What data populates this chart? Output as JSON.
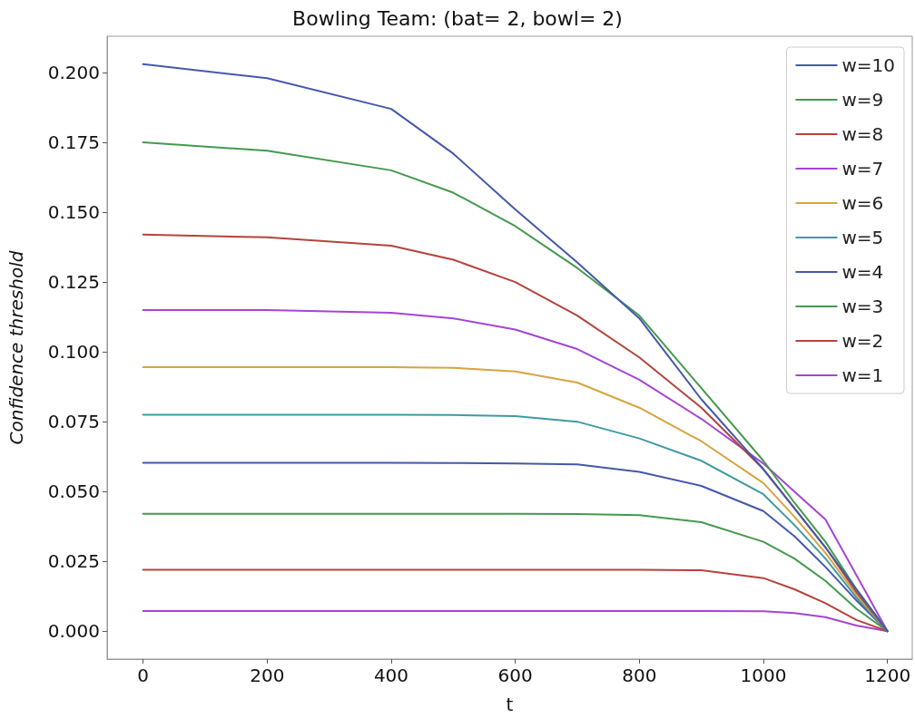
{
  "chart_data": {
    "type": "line",
    "title": "Bowling Team: (bat= 2, bowl= 2)",
    "xlabel": "t",
    "ylabel": "Confidence threshold",
    "x": [
      0,
      200,
      400,
      500,
      600,
      700,
      800,
      900,
      1000,
      1050,
      1100,
      1150,
      1200
    ],
    "series": [
      {
        "name": "w=10",
        "color": "#4459a8",
        "values": [
          0.203,
          0.198,
          0.187,
          0.171,
          0.151,
          0.132,
          0.112,
          0.083,
          0.058,
          0.044,
          0.03,
          0.015,
          0
        ]
      },
      {
        "name": "w=9",
        "color": "#45994f",
        "values": [
          0.175,
          0.172,
          0.165,
          0.157,
          0.145,
          0.13,
          0.113,
          0.087,
          0.061,
          0.046,
          0.032,
          0.015,
          0
        ]
      },
      {
        "name": "w=8",
        "color": "#b3443d",
        "values": [
          0.142,
          0.141,
          0.138,
          0.133,
          0.125,
          0.113,
          0.098,
          0.08,
          0.058,
          0.044,
          0.03,
          0.014,
          0
        ]
      },
      {
        "name": "w=7",
        "color": "#a545d0",
        "values": [
          0.115,
          0.115,
          0.114,
          0.112,
          0.108,
          0.101,
          0.09,
          0.076,
          0.06,
          0.05,
          0.04,
          0.02,
          0
        ]
      },
      {
        "name": "w=6",
        "color": "#d6a440",
        "values": [
          0.0945,
          0.0945,
          0.0945,
          0.0943,
          0.093,
          0.089,
          0.08,
          0.068,
          0.053,
          0.041,
          0.028,
          0.013,
          0
        ]
      },
      {
        "name": "w=5",
        "color": "#3f9aa3",
        "values": [
          0.0775,
          0.0775,
          0.0775,
          0.0774,
          0.077,
          0.075,
          0.069,
          0.061,
          0.049,
          0.038,
          0.026,
          0.012,
          0
        ]
      },
      {
        "name": "w=4",
        "color": "#4459a8",
        "values": [
          0.0603,
          0.0603,
          0.0603,
          0.0602,
          0.06,
          0.0597,
          0.057,
          0.052,
          0.043,
          0.034,
          0.023,
          0.011,
          0
        ]
      },
      {
        "name": "w=3",
        "color": "#45994f",
        "values": [
          0.042,
          0.042,
          0.042,
          0.042,
          0.042,
          0.0419,
          0.0415,
          0.039,
          0.032,
          0.026,
          0.018,
          0.008,
          0
        ]
      },
      {
        "name": "w=2",
        "color": "#b3443d",
        "values": [
          0.022,
          0.022,
          0.022,
          0.022,
          0.022,
          0.022,
          0.022,
          0.0218,
          0.019,
          0.015,
          0.01,
          0.004,
          0
        ]
      },
      {
        "name": "w=1",
        "color": "#a545d0",
        "values": [
          0.0072,
          0.0072,
          0.0072,
          0.0072,
          0.0072,
          0.0072,
          0.0072,
          0.0072,
          0.0071,
          0.0065,
          0.005,
          0.002,
          0
        ]
      }
    ],
    "xlim": [
      -58,
      1240
    ],
    "xticks": [
      0,
      200,
      400,
      600,
      800,
      1000,
      1200
    ],
    "ylim": [
      -0.01,
      0.213
    ],
    "yticks": [
      {
        "value": 0,
        "label": "0.000"
      },
      {
        "value": 0.025,
        "label": "0.025"
      },
      {
        "value": 0.05,
        "label": "0.050"
      },
      {
        "value": 0.075,
        "label": "0.075"
      },
      {
        "value": 0.1,
        "label": "0.100"
      },
      {
        "value": 0.125,
        "label": "0.125"
      },
      {
        "value": 0.15,
        "label": "0.150"
      },
      {
        "value": 0.175,
        "label": "0.175"
      },
      {
        "value": 0.2,
        "label": "0.200"
      }
    ],
    "grid": false,
    "legend": "top right",
    "marker": "none",
    "line_style": "solid"
  }
}
